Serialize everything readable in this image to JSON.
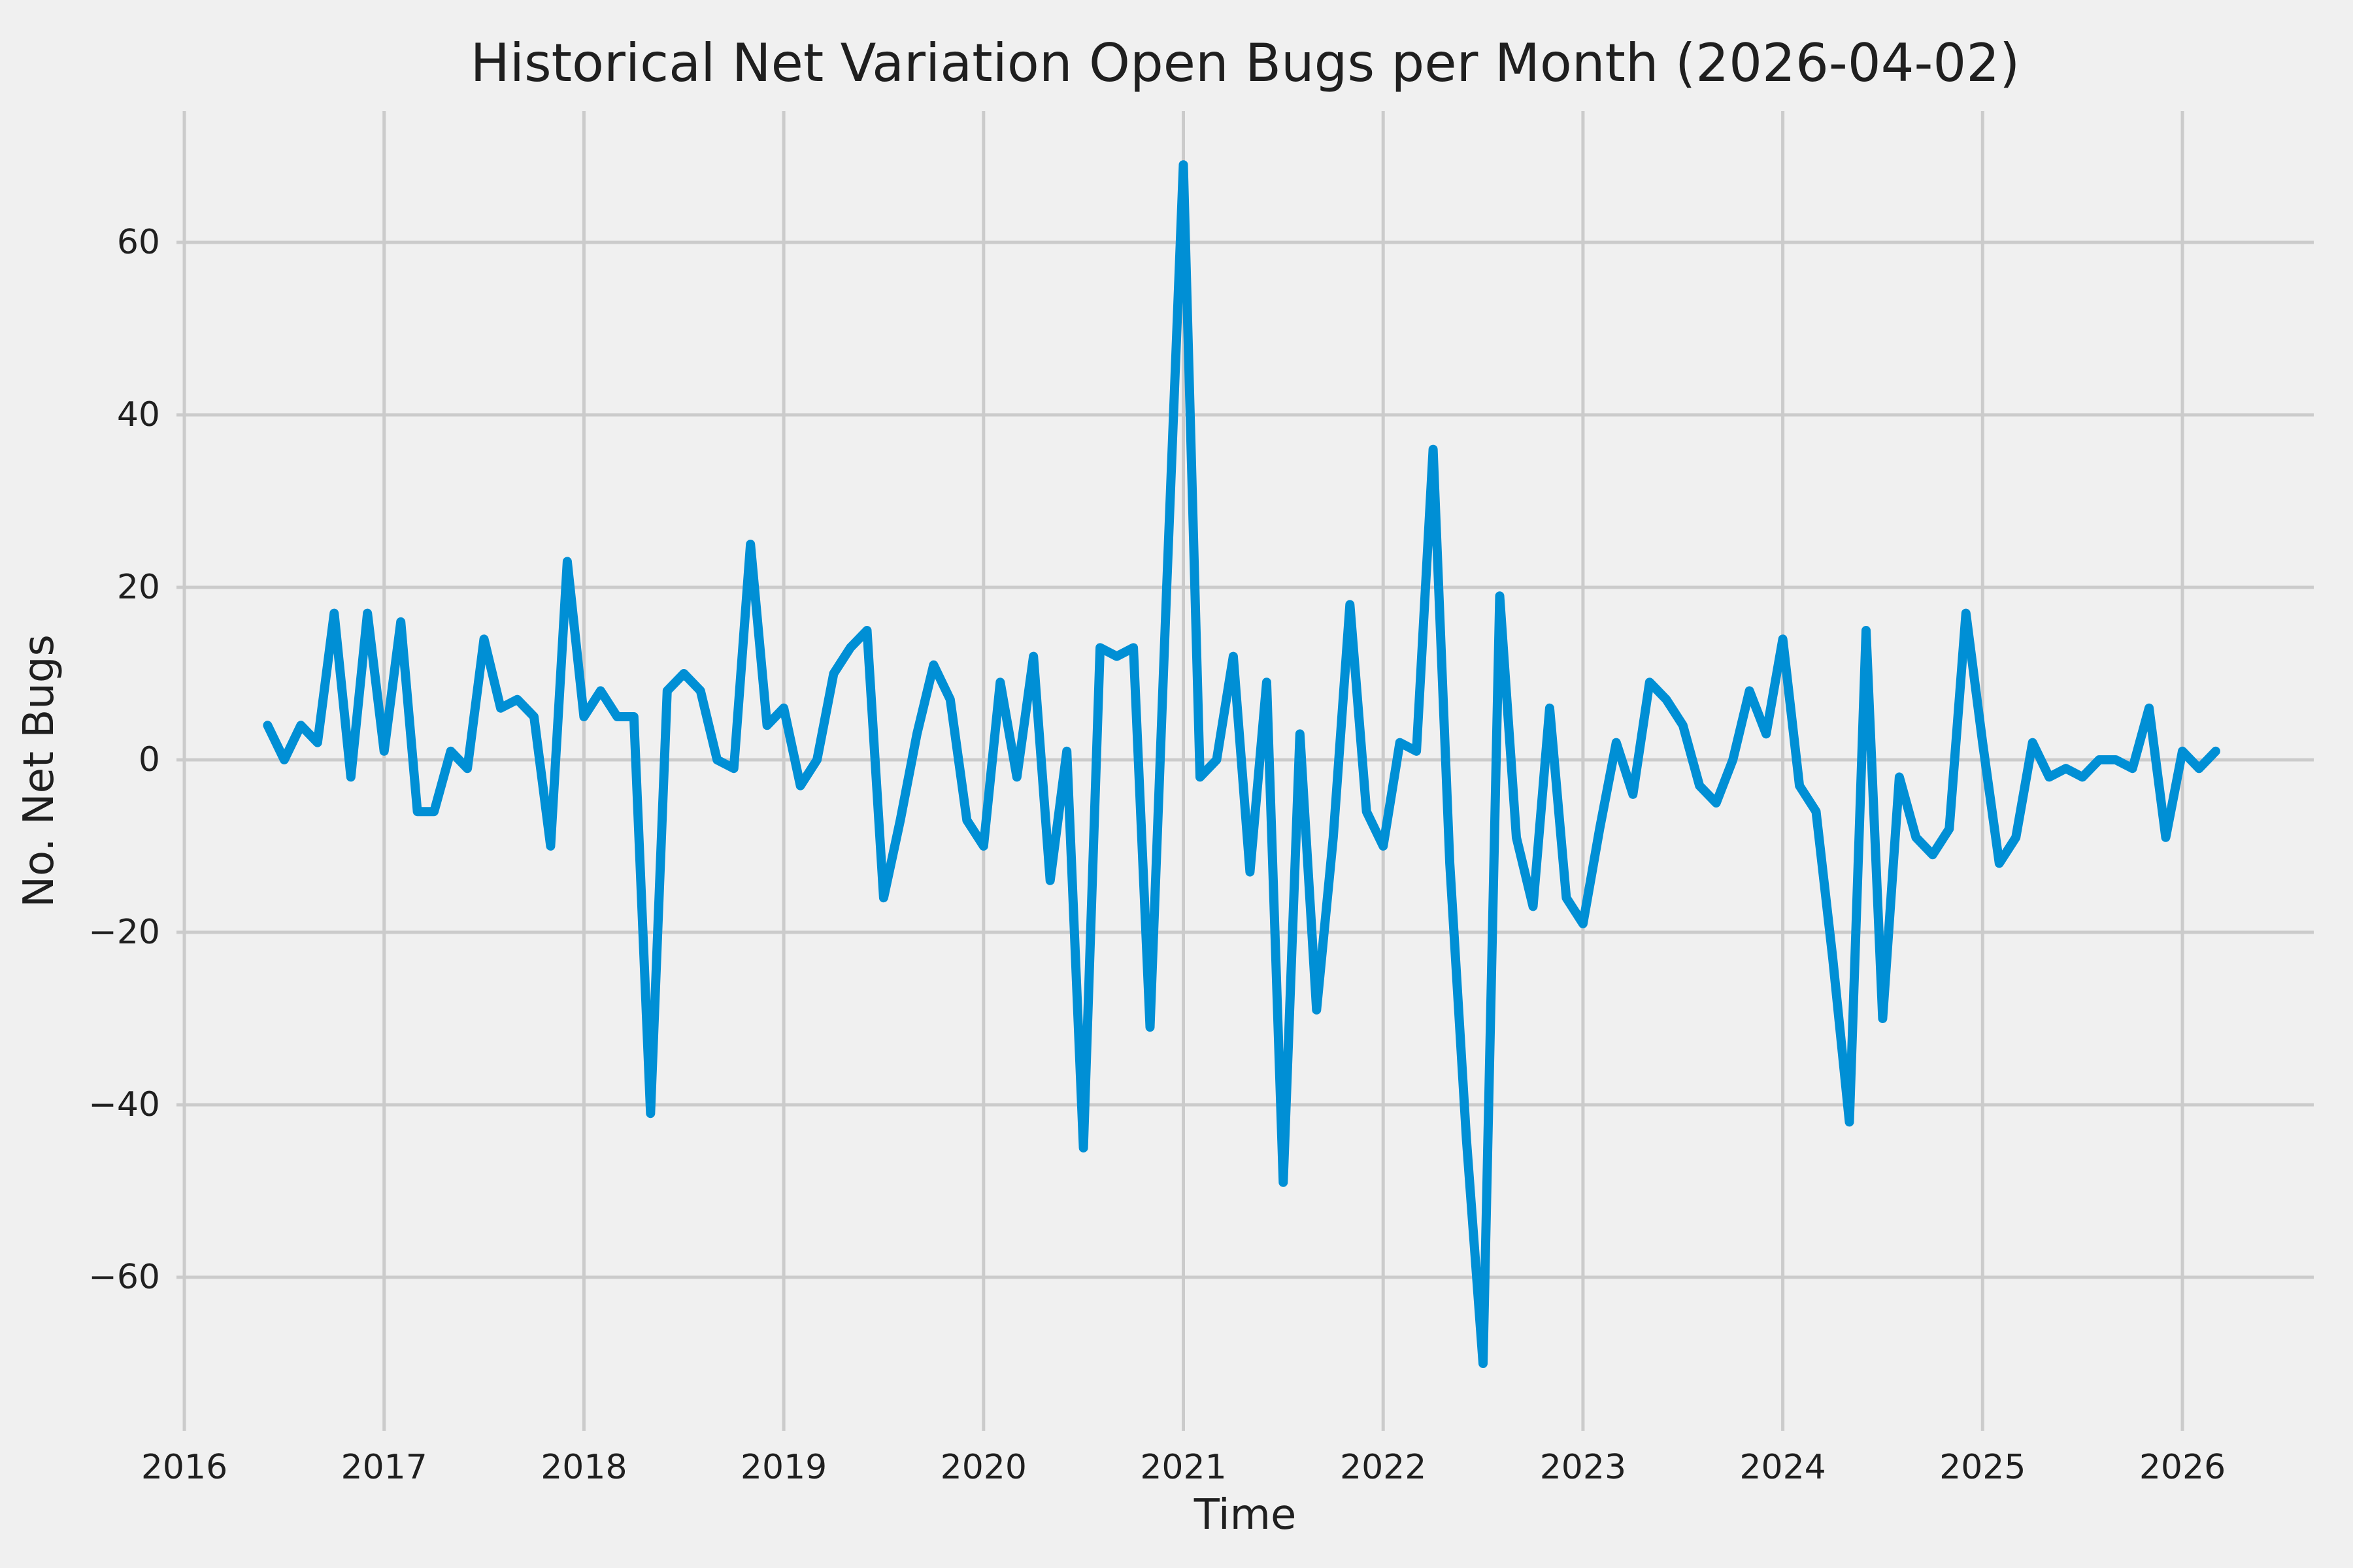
{
  "chart_data": {
    "type": "line",
    "title": "Historical Net Variation Open Bugs per Month (2026-04-02)",
    "xlabel": "Time",
    "ylabel": "No. Net Bugs",
    "grid": true,
    "legend": false,
    "x_tick_years": [
      2016,
      2017,
      2018,
      2019,
      2020,
      2021,
      2022,
      2023,
      2024,
      2025,
      2026
    ],
    "x_tick_labels": [
      "2016",
      "2017",
      "2018",
      "2019",
      "2020",
      "2021",
      "2022",
      "2023",
      "2024",
      "2025",
      "2026"
    ],
    "y_tick_values": [
      60,
      40,
      20,
      0,
      -20,
      -40,
      -60
    ],
    "y_tick_labels": [
      "60",
      "40",
      "20",
      "0",
      "−20",
      "−40",
      "−60"
    ],
    "ylim": [
      -77.8,
      75.2
    ],
    "xlim_years": [
      2015.96,
      2026.66
    ],
    "series": [
      {
        "name": "net-open-bugs-per-month",
        "start_month": "2016-06",
        "end_month": "2026-03",
        "frequency": "monthly",
        "values": [
          4,
          0,
          4,
          2,
          17,
          -2,
          17,
          1,
          16,
          -6,
          -6,
          1,
          -1,
          14,
          6,
          7,
          5,
          -10,
          23,
          5,
          8,
          5,
          5,
          -41,
          8,
          10,
          8,
          0,
          -1,
          25,
          4,
          6,
          -3,
          0,
          10,
          13,
          15,
          -16,
          -7,
          3,
          11,
          7,
          -7,
          -10,
          9,
          -2,
          12,
          -14,
          1,
          -45,
          13,
          12,
          13,
          -31,
          20,
          69,
          -2,
          0,
          12,
          -13,
          9,
          -49,
          3,
          -29,
          -9,
          18,
          -6,
          -10,
          2,
          1,
          36,
          -12,
          -44,
          -70,
          19,
          -9,
          -17,
          6,
          -16,
          -19,
          -8,
          2,
          -4,
          9,
          7,
          4,
          -3,
          -5,
          0,
          8,
          3,
          14,
          -3,
          -6,
          -23,
          -42,
          15,
          -30,
          -2,
          -9,
          -11,
          -8,
          17,
          2,
          -12,
          -9,
          2,
          -2,
          -1,
          -2,
          0,
          0,
          -1,
          6,
          -9,
          1,
          -1,
          1
        ]
      }
    ],
    "colors": {
      "line": "#008fd5",
      "background": "#f0f0f0",
      "grid": "#cbcbcb",
      "text": "#1f1f1f"
    }
  }
}
